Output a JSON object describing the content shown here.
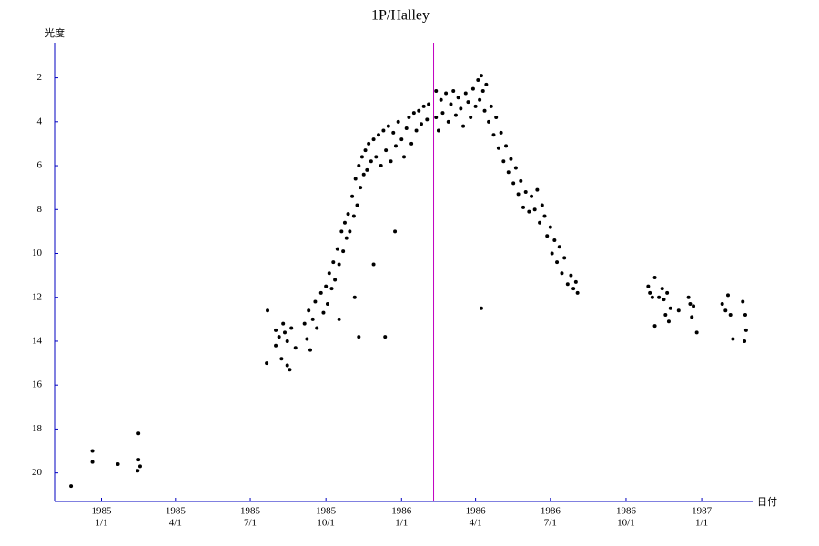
{
  "chart_data": {
    "type": "scatter",
    "title": "1P/Halley",
    "y_label": "光度",
    "x_label": "日付",
    "color": "#000000",
    "axis_color": "#0000c0",
    "vline_x": "1986-02-09",
    "vline_color": "#c000c0",
    "y_inverted": true,
    "xlim": [
      "1984-11-05",
      "1987-03-05"
    ],
    "ylim": [
      21.3,
      0.4
    ],
    "yticks": [
      2,
      4,
      6,
      8,
      10,
      12,
      14,
      16,
      18,
      20
    ],
    "xticks": [
      {
        "value": "1985-01-01",
        "label": [
          "1985",
          "1/1"
        ]
      },
      {
        "value": "1985-04-01",
        "label": [
          "1985",
          "4/1"
        ]
      },
      {
        "value": "1985-07-01",
        "label": [
          "1985",
          "7/1"
        ]
      },
      {
        "value": "1985-10-01",
        "label": [
          "1985",
          "10/1"
        ]
      },
      {
        "value": "1986-01-01",
        "label": [
          "1986",
          "1/1"
        ]
      },
      {
        "value": "1986-04-01",
        "label": [
          "1986",
          "4/1"
        ]
      },
      {
        "value": "1986-07-01",
        "label": [
          "1986",
          "7/1"
        ]
      },
      {
        "value": "1986-10-01",
        "label": [
          "1986",
          "10/1"
        ]
      },
      {
        "value": "1987-01-01",
        "label": [
          "1987",
          "1/1"
        ]
      }
    ],
    "x": [
      "1984-11-25",
      "1984-12-21",
      "1984-12-21",
      "1985-01-21",
      "1985-02-15",
      "1985-02-15",
      "1985-02-17",
      "1985-02-14",
      "1985-07-21",
      "1985-07-22",
      "1985-08-01",
      "1985-08-01",
      "1985-08-05",
      "1985-08-08",
      "1985-08-10",
      "1985-08-12",
      "1985-08-15",
      "1985-08-15",
      "1985-08-18",
      "1985-08-20",
      "1985-08-25",
      "1985-09-05",
      "1985-09-08",
      "1985-09-10",
      "1985-09-12",
      "1985-09-15",
      "1985-09-18",
      "1985-09-20",
      "1985-09-25",
      "1985-09-28",
      "1985-10-01",
      "1985-10-03",
      "1985-10-05",
      "1985-10-08",
      "1985-10-10",
      "1985-10-12",
      "1985-10-15",
      "1985-10-17",
      "1985-10-20",
      "1985-10-22",
      "1985-10-24",
      "1985-10-26",
      "1985-10-28",
      "1985-10-30",
      "1985-11-02",
      "1985-11-04",
      "1985-11-06",
      "1985-11-08",
      "1985-11-10",
      "1985-11-12",
      "1985-11-14",
      "1985-11-16",
      "1985-11-18",
      "1985-11-20",
      "1985-11-22",
      "1985-11-25",
      "1985-11-28",
      "1985-12-01",
      "1985-12-04",
      "1985-12-07",
      "1985-12-10",
      "1985-12-13",
      "1985-12-16",
      "1985-12-19",
      "1985-12-22",
      "1985-12-25",
      "1985-12-28",
      "1986-01-01",
      "1986-01-04",
      "1986-01-07",
      "1986-01-10",
      "1986-01-13",
      "1986-01-16",
      "1986-01-19",
      "1986-01-22",
      "1986-01-25",
      "1986-01-28",
      "1986-02-01",
      "1986-02-03",
      "1986-02-12",
      "1986-02-12",
      "1986-02-15",
      "1986-02-18",
      "1986-02-20",
      "1986-02-24",
      "1986-02-27",
      "1986-03-02",
      "1986-03-05",
      "1986-03-08",
      "1986-03-11",
      "1986-03-14",
      "1986-03-17",
      "1986-03-20",
      "1986-03-23",
      "1986-03-26",
      "1986-03-29",
      "1986-04-01",
      "1986-04-04",
      "1986-04-06",
      "1986-04-08",
      "1986-04-10",
      "1986-04-12",
      "1986-04-14",
      "1986-04-17",
      "1986-04-20",
      "1986-04-23",
      "1986-04-26",
      "1986-04-29",
      "1986-05-02",
      "1986-05-05",
      "1986-05-08",
      "1986-05-11",
      "1986-05-14",
      "1986-05-17",
      "1986-05-20",
      "1986-05-23",
      "1986-05-26",
      "1986-05-29",
      "1986-06-01",
      "1986-06-05",
      "1986-06-08",
      "1986-06-12",
      "1986-06-15",
      "1986-06-18",
      "1986-06-21",
      "1986-06-24",
      "1986-06-27",
      "1986-07-01",
      "1986-07-03",
      "1986-07-06",
      "1986-07-09",
      "1986-07-12",
      "1986-07-15",
      "1986-07-18",
      "1986-07-22",
      "1986-07-26",
      "1986-07-29",
      "1986-08-01",
      "1986-08-03",
      "1986-10-28",
      "1986-10-30",
      "1986-11-02",
      "1986-11-05",
      "1986-11-05",
      "1986-11-10",
      "1986-11-14",
      "1986-11-16",
      "1986-11-18",
      "1986-11-20",
      "1986-11-22",
      "1986-11-24",
      "1986-12-04",
      "1986-12-16",
      "1986-12-18",
      "1986-12-20",
      "1986-12-22",
      "1986-12-26",
      "1987-01-26",
      "1987-01-30",
      "1987-02-02",
      "1987-02-05",
      "1987-02-08",
      "1987-02-20",
      "1987-02-22",
      "1987-02-23",
      "1987-02-24",
      "1985-11-10",
      "1985-12-12",
      "1985-11-28",
      "1985-12-24",
      "1985-11-05",
      "1985-10-17",
      "1986-04-08"
    ],
    "values": [
      20.6,
      19.0,
      19.5,
      19.6,
      18.2,
      19.4,
      19.7,
      19.9,
      15.0,
      12.6,
      13.5,
      14.2,
      13.8,
      14.8,
      13.2,
      13.6,
      14.0,
      15.1,
      15.3,
      13.4,
      14.3,
      13.2,
      13.9,
      12.6,
      14.4,
      13.0,
      12.2,
      13.4,
      11.8,
      12.7,
      11.5,
      12.3,
      10.9,
      11.6,
      10.4,
      11.2,
      9.8,
      10.5,
      9.0,
      9.9,
      8.6,
      9.3,
      8.2,
      9.0,
      7.4,
      8.3,
      6.6,
      7.8,
      6.0,
      7.0,
      5.6,
      6.4,
      5.3,
      6.2,
      5.0,
      5.8,
      4.8,
      5.6,
      4.6,
      6.0,
      4.4,
      5.3,
      4.2,
      5.8,
      4.5,
      5.1,
      4.0,
      4.8,
      5.6,
      4.3,
      3.8,
      5.0,
      3.6,
      4.4,
      3.5,
      4.1,
      3.3,
      3.9,
      3.2,
      2.6,
      3.8,
      4.4,
      3.0,
      3.6,
      2.7,
      4.0,
      3.2,
      2.6,
      3.7,
      2.9,
      3.4,
      4.2,
      2.7,
      3.1,
      3.8,
      2.5,
      3.3,
      2.1,
      3.0,
      1.9,
      2.6,
      3.5,
      2.3,
      4.0,
      3.3,
      4.6,
      3.8,
      5.2,
      4.5,
      5.8,
      5.1,
      6.3,
      5.7,
      6.8,
      6.1,
      7.3,
      6.7,
      7.9,
      7.2,
      8.1,
      7.4,
      8.0,
      7.1,
      8.6,
      7.8,
      8.3,
      9.2,
      8.8,
      10.0,
      9.4,
      10.4,
      9.7,
      10.9,
      10.2,
      11.4,
      11.0,
      11.6,
      11.3,
      11.8,
      11.5,
      11.8,
      12.0,
      11.1,
      13.3,
      12.0,
      11.6,
      12.1,
      12.8,
      11.8,
      13.1,
      12.5,
      12.6,
      12.0,
      12.3,
      12.9,
      12.4,
      13.6,
      12.3,
      12.6,
      11.9,
      12.8,
      13.9,
      12.2,
      14.0,
      12.8,
      13.5,
      13.8,
      13.8,
      10.5,
      9.0,
      12.0,
      13.0,
      12.5
    ]
  }
}
